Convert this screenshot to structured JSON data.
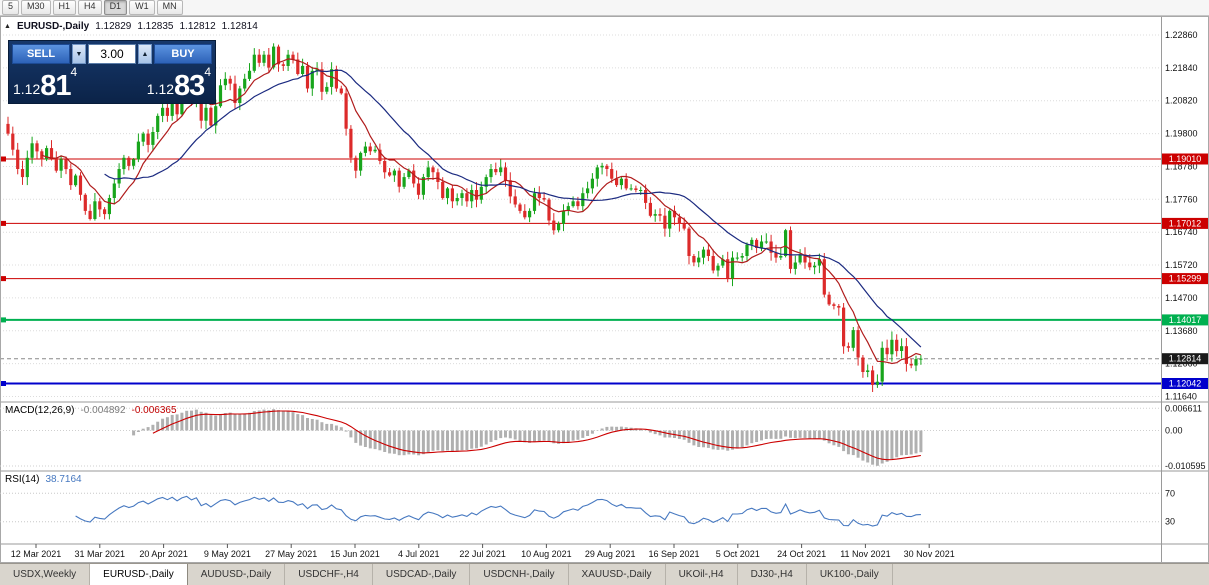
{
  "toolbar": {
    "timeframes": [
      {
        "label": "5",
        "active": false
      },
      {
        "label": "M30",
        "active": false
      },
      {
        "label": "H1",
        "active": false
      },
      {
        "label": "H4",
        "active": false
      },
      {
        "label": "D1",
        "active": true
      },
      {
        "label": "W1",
        "active": false
      },
      {
        "label": "MN",
        "active": false
      }
    ]
  },
  "header": {
    "collapse_icon": "▲",
    "symbol": "EURUSD-,Daily",
    "open": "1.12829",
    "high": "1.12835",
    "low": "1.12812",
    "close": "1.12814"
  },
  "trade_panel": {
    "sell_label": "SELL",
    "buy_label": "BUY",
    "volume": "3.00",
    "spinner_down": "▼",
    "spinner_up": "▲",
    "sell_price": {
      "prefix": "1.12",
      "big": "81",
      "sup": "4"
    },
    "buy_price": {
      "prefix": "1.12",
      "big": "83",
      "sup": "4"
    }
  },
  "colors": {
    "bull": "#18a51c",
    "bear": "#dc2a2a",
    "grid": "#dcdcdc",
    "divider": "#9a9a9a",
    "current_line": "#888888"
  },
  "chart_data": {
    "type": "candlestick",
    "symbol": "EURUSD",
    "timeframe": "Daily",
    "first_open": 1.201,
    "ylim": [
      1.115,
      1.2345
    ],
    "closes": [
      1.198,
      1.193,
      1.187,
      1.1845,
      1.1905,
      1.195,
      1.1925,
      1.19,
      1.1935,
      1.1905,
      1.1865,
      1.19,
      1.187,
      1.182,
      1.185,
      1.179,
      1.174,
      1.1715,
      1.177,
      1.1745,
      1.173,
      1.178,
      1.1825,
      1.187,
      1.1905,
      1.188,
      1.19,
      1.1955,
      1.198,
      1.1945,
      1.1985,
      1.2035,
      1.206,
      1.2035,
      1.208,
      1.204,
      1.2095,
      1.2125,
      1.2085,
      1.2125,
      1.202,
      1.206,
      1.2005,
      1.2065,
      1.213,
      1.215,
      1.2135,
      1.2075,
      1.212,
      1.215,
      1.2175,
      1.2225,
      1.22,
      1.2225,
      1.2185,
      1.225,
      1.2195,
      1.219,
      1.2225,
      1.221,
      1.2165,
      1.219,
      1.212,
      1.2175,
      1.218,
      1.211,
      1.2125,
      1.218,
      1.212,
      1.2105,
      1.1995,
      1.1905,
      1.1865,
      1.192,
      1.194,
      1.1925,
      1.193,
      1.1895,
      1.186,
      1.185,
      1.1865,
      1.1815,
      1.1845,
      1.1865,
      1.1825,
      1.179,
      1.1845,
      1.1875,
      1.186,
      1.183,
      1.178,
      1.181,
      1.177,
      1.178,
      1.1795,
      1.177,
      1.1805,
      1.1775,
      1.1815,
      1.1845,
      1.187,
      1.186,
      1.1875,
      1.1835,
      1.1785,
      1.176,
      1.174,
      1.172,
      1.174,
      1.1795,
      1.178,
      1.1775,
      1.171,
      1.168,
      1.17,
      1.174,
      1.1755,
      1.177,
      1.1755,
      1.1795,
      1.181,
      1.184,
      1.1875,
      1.188,
      1.187,
      1.184,
      1.182,
      1.184,
      1.181,
      1.181,
      1.1805,
      1.1805,
      1.1765,
      1.1725,
      1.173,
      1.1725,
      1.1685,
      1.174,
      1.172,
      1.17,
      1.1685,
      1.16,
      1.158,
      1.1595,
      1.162,
      1.16,
      1.1555,
      1.157,
      1.159,
      1.153,
      1.1595,
      1.1595,
      1.16,
      1.1635,
      1.165,
      1.1625,
      1.1645,
      1.1645,
      1.161,
      1.1595,
      1.16,
      1.168,
      1.156,
      1.158,
      1.1605,
      1.158,
      1.1565,
      1.157,
      1.159,
      1.148,
      1.145,
      1.1445,
      1.144,
      1.132,
      1.1315,
      1.137,
      1.1285,
      1.124,
      1.1245,
      1.12,
      1.121,
      1.1315,
      1.1295,
      1.134,
      1.1305,
      1.132,
      1.1265,
      1.126,
      1.128,
      1.12814
    ],
    "price_ticks": [
      "1.22860",
      "1.21840",
      "1.20820",
      "1.19800",
      "1.18780",
      "1.17760",
      "1.16740",
      "1.15720",
      "1.14700",
      "1.13680",
      "1.12660",
      "1.11640"
    ],
    "levels": [
      {
        "price": 1.1901,
        "label": "1.19010",
        "color": "#cc0000",
        "width": 1
      },
      {
        "price": 1.17012,
        "label": "1.17012",
        "color": "#cc0000",
        "width": 1
      },
      {
        "price": 1.15299,
        "label": "1.15299",
        "color": "#cc0000",
        "width": 1
      },
      {
        "price": 1.14017,
        "label": "1.14017",
        "color": "#00b050",
        "width": 2
      },
      {
        "price": 1.12042,
        "label": "1.12042",
        "color": "#0000cc",
        "width": 2
      }
    ],
    "current_price": {
      "price": 1.12814,
      "label": "1.12814",
      "color": "#1a1a1a"
    },
    "ma_overlays": [
      {
        "type": "sma",
        "period": 8,
        "color": "#b01c1c"
      },
      {
        "type": "sma",
        "period": 21,
        "color": "#1b2a80"
      }
    ],
    "indicators": {
      "macd": {
        "params": [
          12,
          26,
          9
        ],
        "label": "MACD(12,26,9)",
        "value_main": "-0.004892",
        "value_signal": "-0.006365",
        "ylim": [
          -0.0118,
          0.0082
        ],
        "axis_ticks": [
          {
            "v": 0.006611,
            "label": "0.006611"
          },
          {
            "v": 0,
            "label": "0.00"
          },
          {
            "v": -0.010595,
            "label": "-0.010595"
          }
        ],
        "histogram_color": "#b0b0b0",
        "signal_color": "#cc0000"
      },
      "rsi": {
        "period": 14,
        "label": "RSI(14)",
        "value": "38.7164",
        "levels": [
          70,
          30
        ],
        "color": "#4678c0"
      }
    }
  },
  "x_axis": {
    "labels": [
      "12 Mar 2021",
      "31 Mar 2021",
      "20 Apr 2021",
      "9 May 2021",
      "27 May 2021",
      "15 Jun 2021",
      "4 Jul 2021",
      "22 Jul 2021",
      "10 Aug 2021",
      "29 Aug 2021",
      "16 Sep 2021",
      "5 Oct 2021",
      "24 Oct 2021",
      "11 Nov 2021",
      "30 Nov 2021"
    ]
  },
  "tabs": {
    "items": [
      {
        "label": "USDX,Weekly",
        "active": false
      },
      {
        "label": "EURUSD-,Daily",
        "active": true
      },
      {
        "label": "AUDUSD-,Daily",
        "active": false
      },
      {
        "label": "USDCHF-,H4",
        "active": false
      },
      {
        "label": "USDCAD-,Daily",
        "active": false
      },
      {
        "label": "USDCNH-,Daily",
        "active": false
      },
      {
        "label": "XAUUSD-,Daily",
        "active": false
      },
      {
        "label": "UKOil-,H4",
        "active": false
      },
      {
        "label": "DJ30-,H4",
        "active": false
      },
      {
        "label": "UK100-,Daily",
        "active": false
      }
    ]
  }
}
